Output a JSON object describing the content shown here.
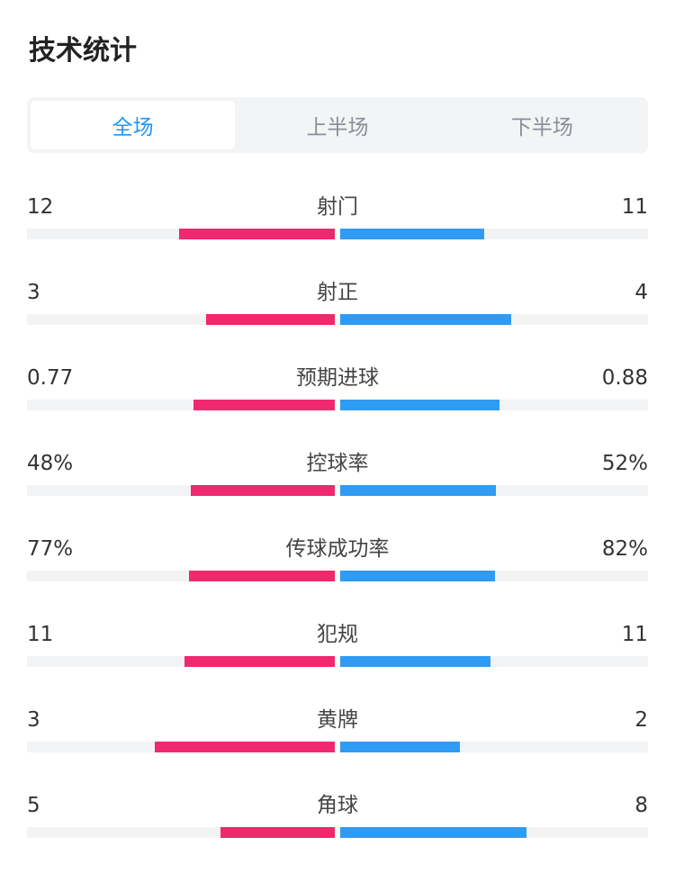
{
  "page_title": "技术统计",
  "tabs": [
    {
      "label": "全场",
      "active": true
    },
    {
      "label": "上半场",
      "active": false
    },
    {
      "label": "下半场",
      "active": false
    }
  ],
  "colors": {
    "home": "#f0286d",
    "away": "#2f9bf4",
    "active_tab": "#2196f3"
  },
  "stats": [
    {
      "label": "射门",
      "home": "12",
      "away": "11",
      "home_share": 0.52,
      "away_share": 0.48
    },
    {
      "label": "射正",
      "home": "3",
      "away": "4",
      "home_share": 0.43,
      "away_share": 0.57
    },
    {
      "label": "预期进球",
      "home": "0.77",
      "away": "0.88",
      "home_share": 0.47,
      "away_share": 0.53
    },
    {
      "label": "控球率",
      "home": "48%",
      "away": "52%",
      "home_share": 0.48,
      "away_share": 0.52
    },
    {
      "label": "传球成功率",
      "home": "77%",
      "away": "82%",
      "home_share": 0.485,
      "away_share": 0.515
    },
    {
      "label": "犯规",
      "home": "11",
      "away": "11",
      "home_share": 0.5,
      "away_share": 0.5
    },
    {
      "label": "黄牌",
      "home": "3",
      "away": "2",
      "home_share": 0.6,
      "away_share": 0.4
    },
    {
      "label": "角球",
      "home": "5",
      "away": "8",
      "home_share": 0.38,
      "away_share": 0.62
    }
  ]
}
